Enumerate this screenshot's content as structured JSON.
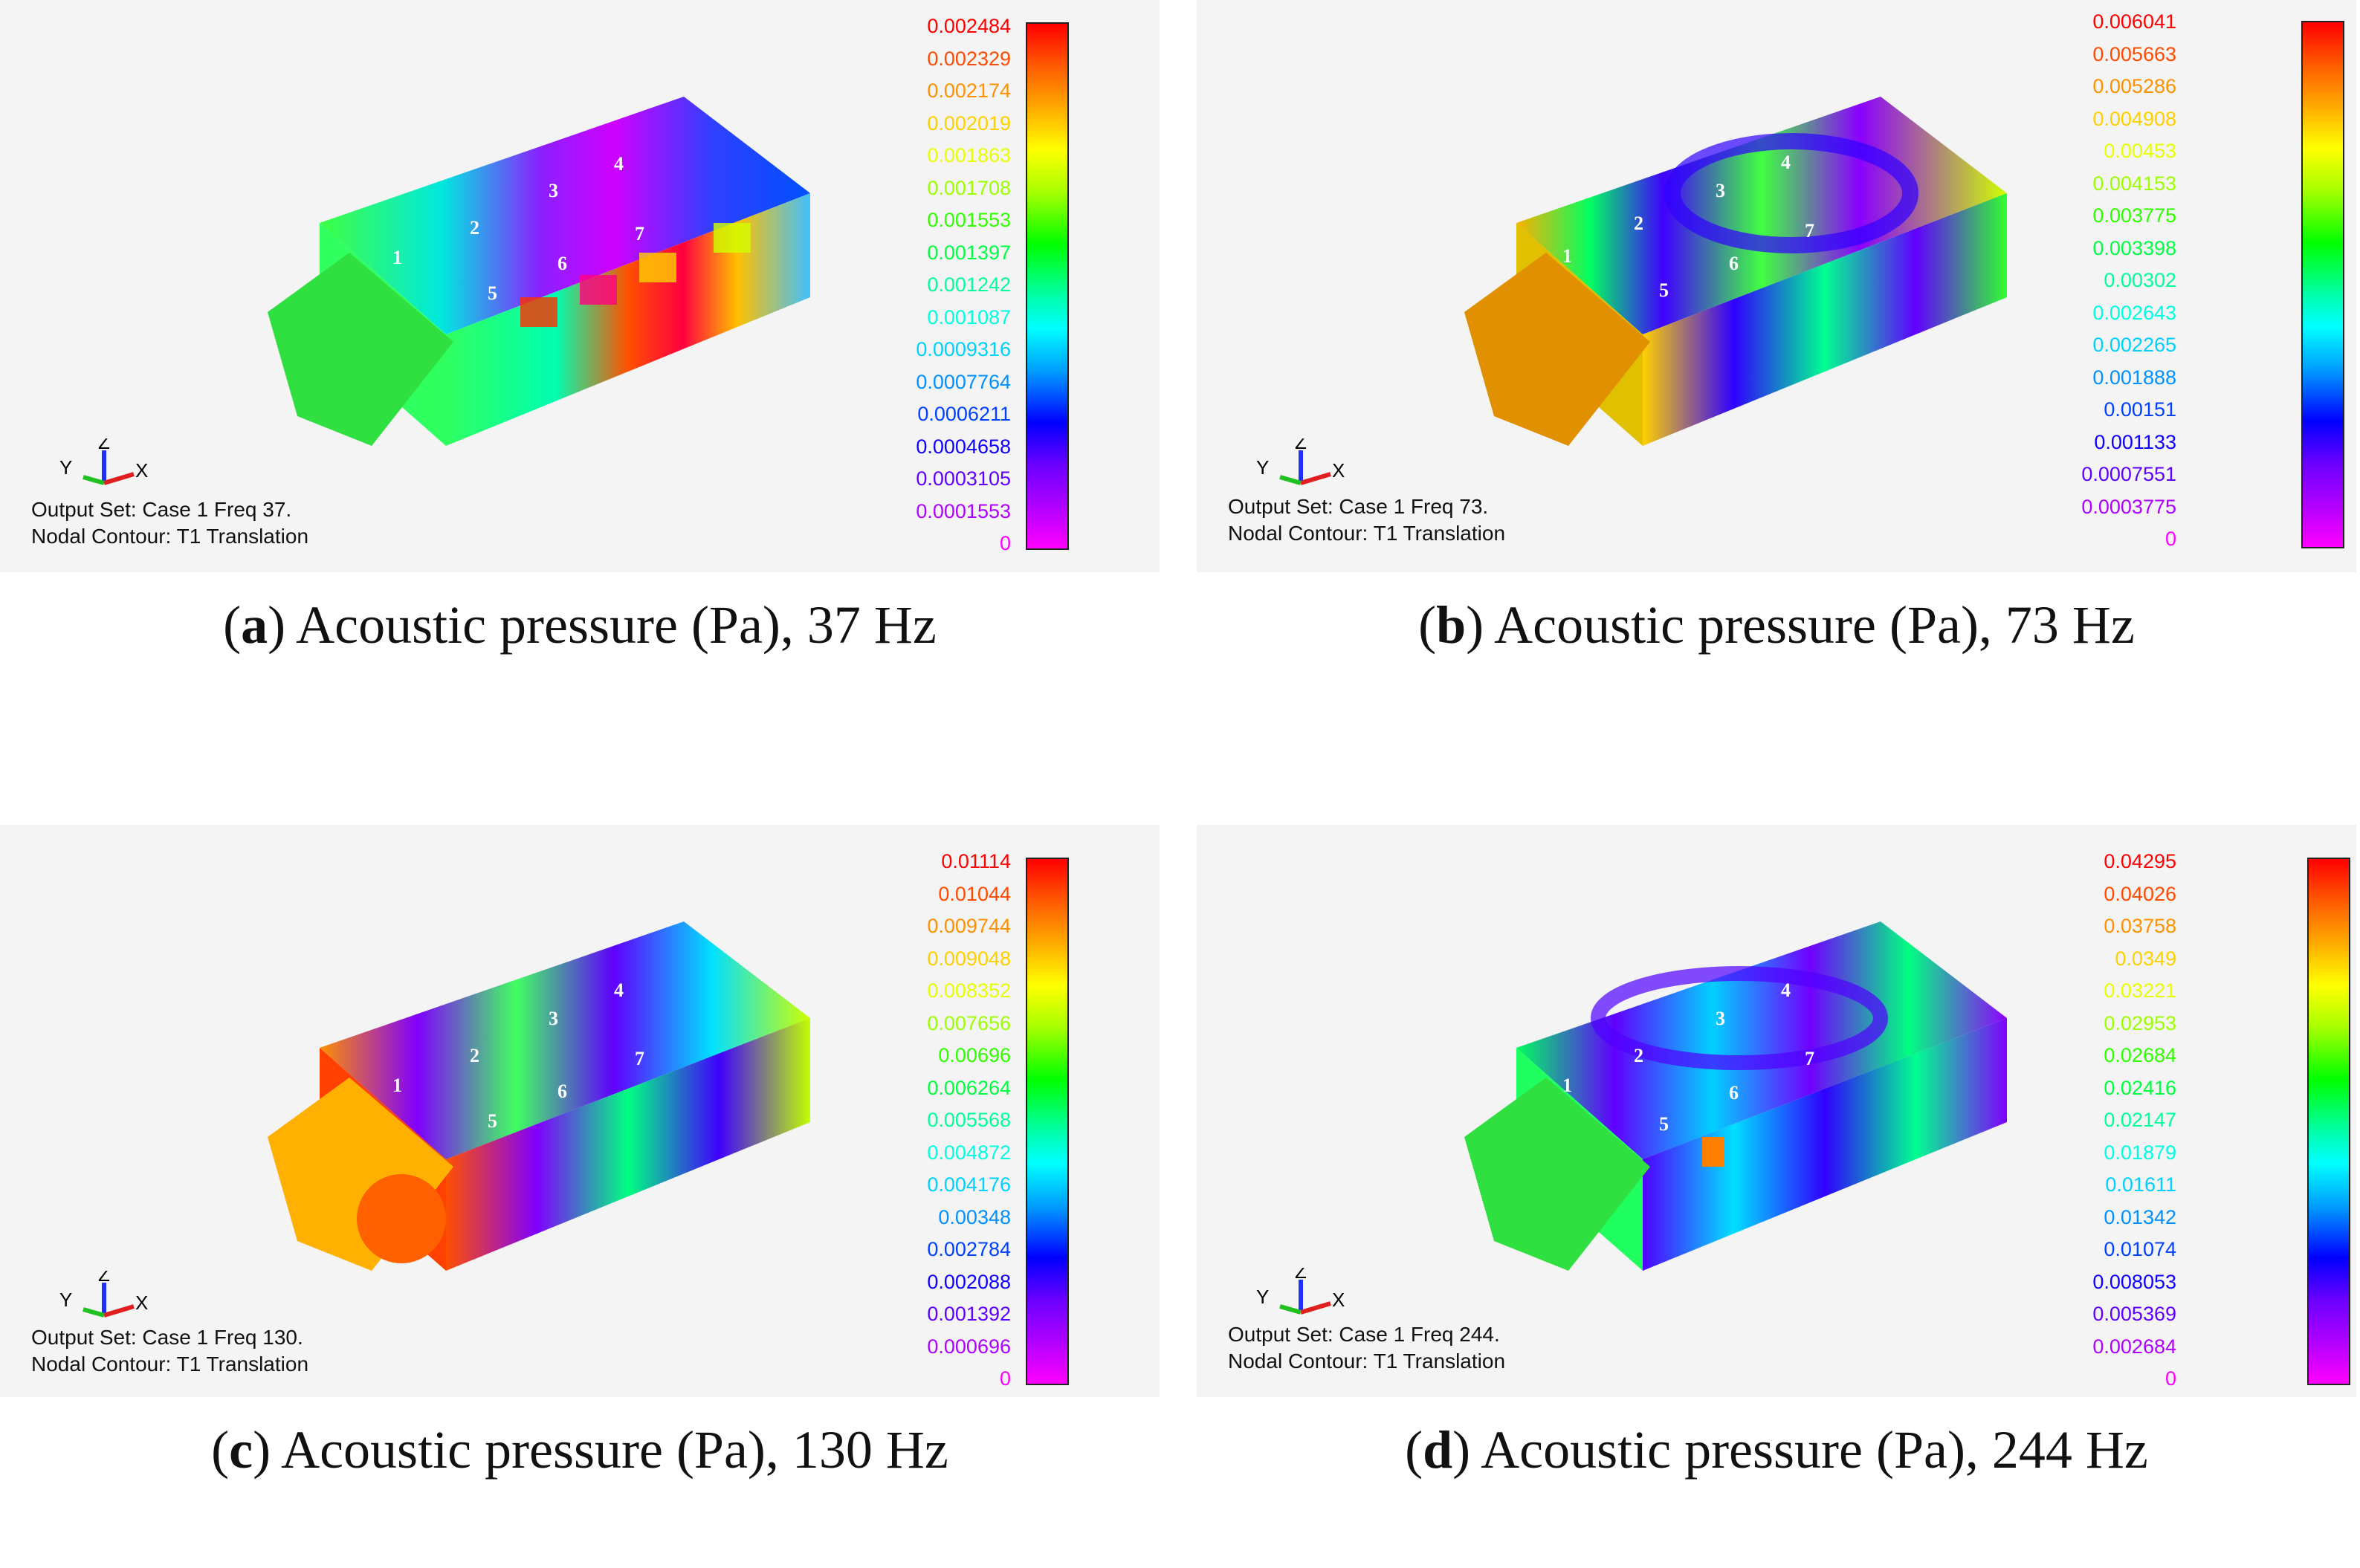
{
  "panels": [
    {
      "letter": "a",
      "caption_text": ") Acoustic pressure (Pa), 37 Hz",
      "output_set": "Output Set: Case 1 Freq 37.",
      "nodal_contour": "Nodal Contour: T1 Translation",
      "legend": [
        "0.002484",
        "0.002329",
        "0.002174",
        "0.002019",
        "0.001863",
        "0.001708",
        "0.001553",
        "0.001397",
        "0.001242",
        "0.001087",
        "0.0009316",
        "0.0007764",
        "0.0006211",
        "0.0004658",
        "0.0003105",
        "0.0001553",
        "0"
      ],
      "markers": [
        "1",
        "2",
        "3",
        "4",
        "5",
        "6",
        "7"
      ]
    },
    {
      "letter": "b",
      "caption_text": ") Acoustic pressure (Pa), 73 Hz",
      "output_set": "Output Set: Case 1 Freq 73.",
      "nodal_contour": "Nodal Contour: T1 Translation",
      "legend": [
        "0.006041",
        "0.005663",
        "0.005286",
        "0.004908",
        "0.00453",
        "0.004153",
        "0.003775",
        "0.003398",
        "0.00302",
        "0.002643",
        "0.002265",
        "0.001888",
        "0.00151",
        "0.001133",
        "0.0007551",
        "0.0003775",
        "0"
      ],
      "markers": [
        "1",
        "2",
        "3",
        "4",
        "5",
        "6",
        "7"
      ]
    },
    {
      "letter": "c",
      "caption_text": ") Acoustic pressure (Pa), 130 Hz",
      "output_set": "Output Set: Case 1 Freq 130.",
      "nodal_contour": "Nodal Contour: T1 Translation",
      "legend": [
        "0.01114",
        "0.01044",
        "0.009744",
        "0.009048",
        "0.008352",
        "0.007656",
        "0.00696",
        "0.006264",
        "0.005568",
        "0.004872",
        "0.004176",
        "0.00348",
        "0.002784",
        "0.002088",
        "0.001392",
        "0.000696",
        "0"
      ],
      "markers": [
        "1",
        "2",
        "3",
        "4",
        "5",
        "6",
        "7"
      ]
    },
    {
      "letter": "d",
      "caption_text": ") Acoustic pressure (Pa), 244 Hz",
      "output_set": "Output Set: Case 1 Freq 244.",
      "nodal_contour": "Nodal Contour: T1 Translation",
      "legend": [
        "0.04295",
        "0.04026",
        "0.03758",
        "0.0349",
        "0.03221",
        "0.02953",
        "0.02684",
        "0.02416",
        "0.02147",
        "0.01879",
        "0.01611",
        "0.01342",
        "0.01074",
        "0.008053",
        "0.005369",
        "0.002684",
        "0"
      ],
      "markers": [
        "1",
        "2",
        "3",
        "4",
        "5",
        "6",
        "7"
      ]
    }
  ],
  "axes": {
    "x": "X",
    "y": "Y",
    "z": "Z"
  },
  "legend_colors": [
    "#ff0000",
    "#ff4a00",
    "#ff9000",
    "#ffd000",
    "#e8ff00",
    "#9cff00",
    "#30ff00",
    "#00ff40",
    "#00ff9a",
    "#00ffe0",
    "#00d0ff",
    "#0090ff",
    "#0040ff",
    "#1000ff",
    "#6000ff",
    "#b000ff",
    "#ff00ff"
  ]
}
